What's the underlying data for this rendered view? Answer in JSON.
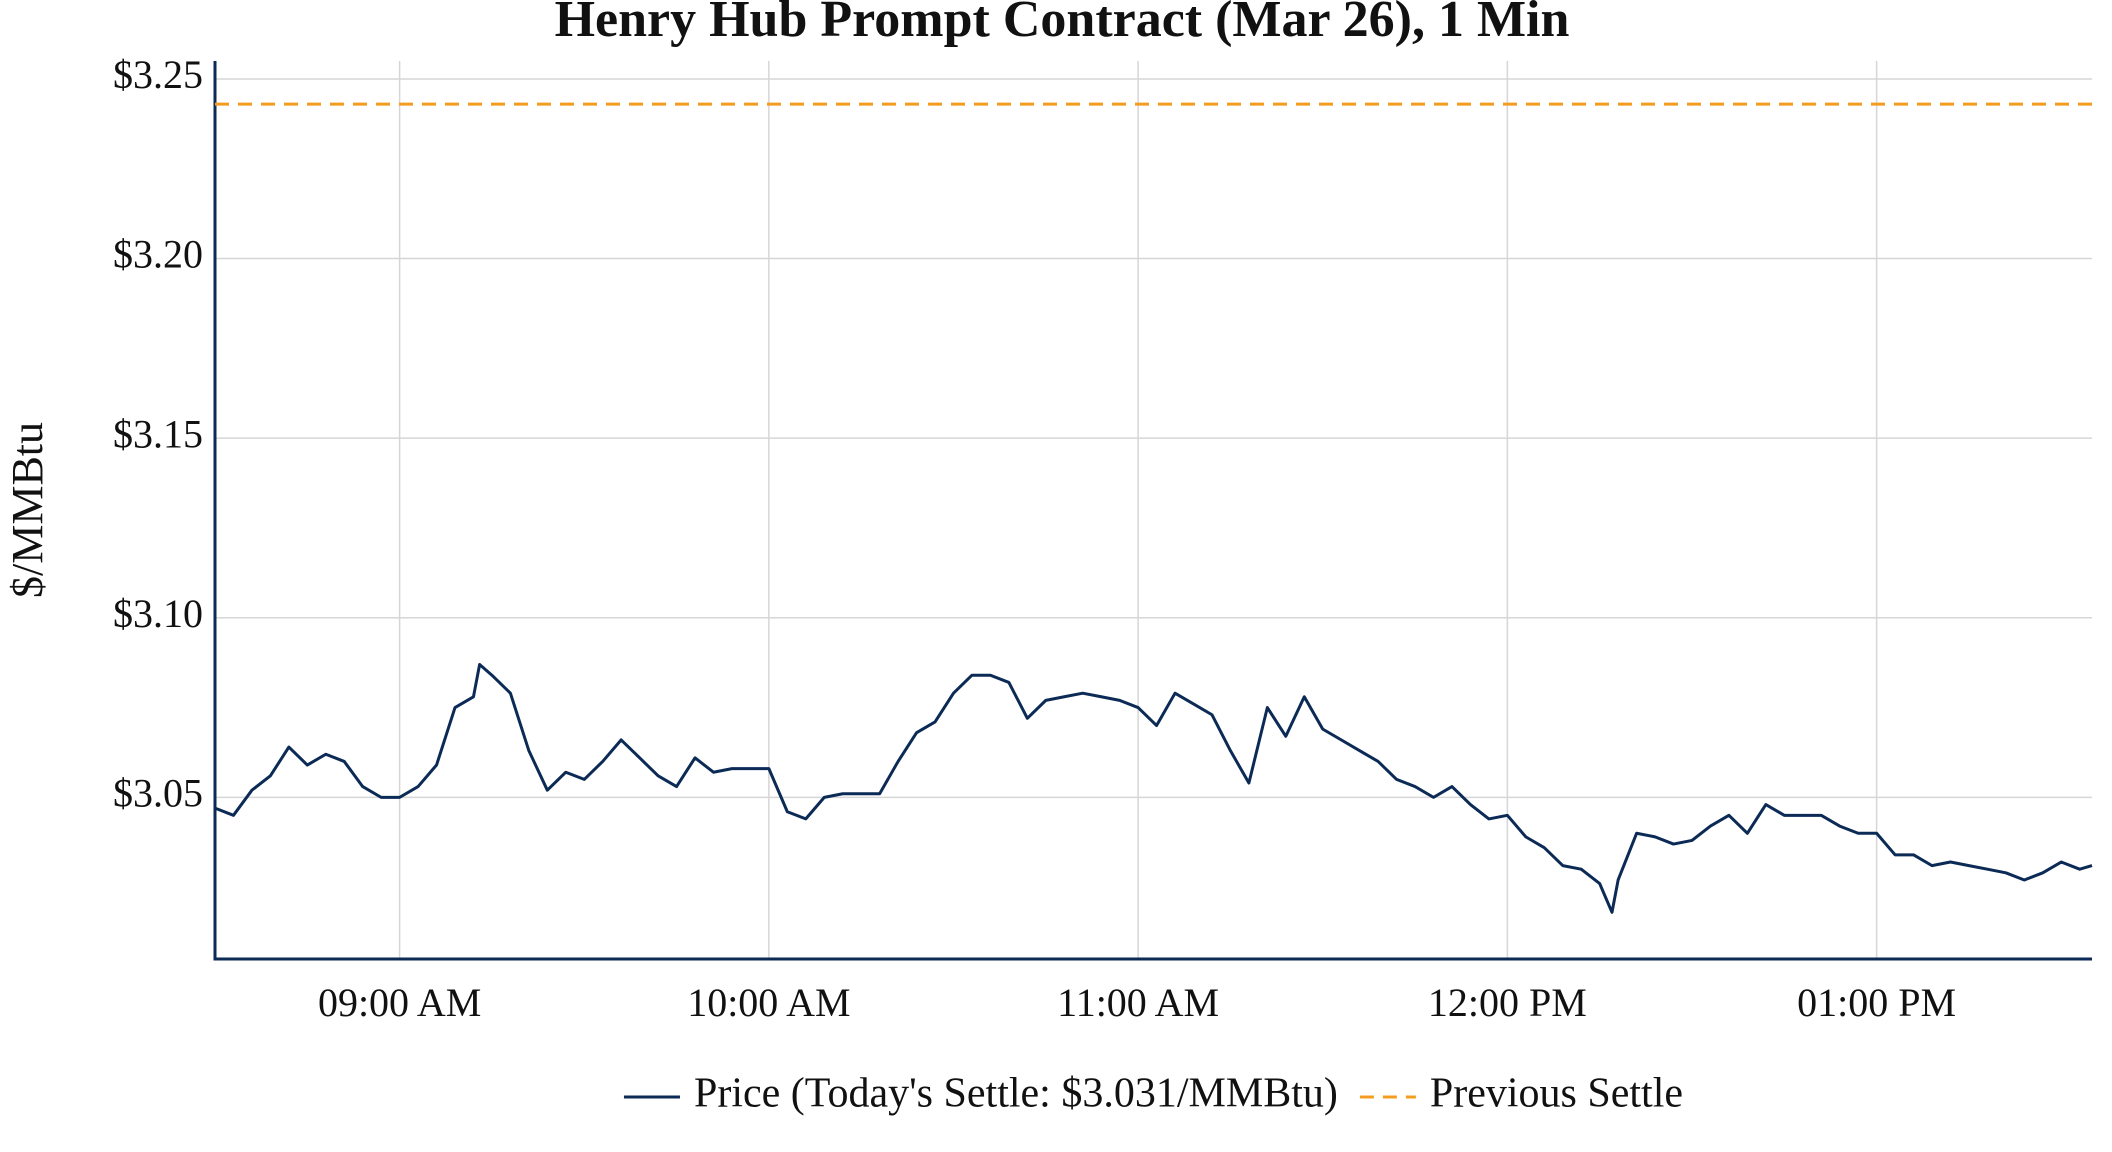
{
  "chart_data": {
    "type": "line",
    "title": "Henry Hub Prompt Contract (Mar 26), 1 Min",
    "y_label": "$/MMBtu",
    "x": [
      "08:30",
      "08:33",
      "08:36",
      "08:39",
      "08:42",
      "08:45",
      "08:48",
      "08:51",
      "08:54",
      "08:57",
      "09:00",
      "09:03",
      "09:06",
      "09:09",
      "09:12",
      "09:13",
      "09:15",
      "09:18",
      "09:21",
      "09:24",
      "09:27",
      "09:30",
      "09:33",
      "09:36",
      "09:39",
      "09:42",
      "09:45",
      "09:48",
      "09:51",
      "09:54",
      "09:57",
      "10:00",
      "10:03",
      "10:06",
      "10:09",
      "10:12",
      "10:15",
      "10:18",
      "10:21",
      "10:24",
      "10:27",
      "10:30",
      "10:33",
      "10:36",
      "10:39",
      "10:42",
      "10:45",
      "10:48",
      "10:51",
      "10:54",
      "10:57",
      "11:00",
      "11:03",
      "11:06",
      "11:09",
      "11:12",
      "11:15",
      "11:18",
      "11:21",
      "11:24",
      "11:27",
      "11:30",
      "11:33",
      "11:36",
      "11:39",
      "11:42",
      "11:45",
      "11:48",
      "11:51",
      "11:54",
      "11:57",
      "12:00",
      "12:03",
      "12:06",
      "12:09",
      "12:12",
      "12:15",
      "12:17",
      "12:18",
      "12:21",
      "12:24",
      "12:27",
      "12:30",
      "12:33",
      "12:36",
      "12:39",
      "12:42",
      "12:45",
      "12:48",
      "12:51",
      "12:54",
      "12:57",
      "13:00",
      "13:03",
      "13:06",
      "13:09",
      "13:12",
      "13:15",
      "13:18",
      "13:21",
      "13:24",
      "13:27",
      "13:30",
      "13:33",
      "13:35"
    ],
    "series": [
      {
        "name": "Price (Today's Settle: $3.031/MMBtu)",
        "color": "#0b2a55",
        "values": [
          3.047,
          3.045,
          3.052,
          3.056,
          3.064,
          3.059,
          3.062,
          3.06,
          3.053,
          3.05,
          3.05,
          3.053,
          3.059,
          3.075,
          3.078,
          3.087,
          3.084,
          3.079,
          3.063,
          3.052,
          3.057,
          3.055,
          3.06,
          3.066,
          3.061,
          3.056,
          3.053,
          3.061,
          3.057,
          3.058,
          3.058,
          3.058,
          3.046,
          3.044,
          3.05,
          3.051,
          3.051,
          3.051,
          3.06,
          3.068,
          3.071,
          3.079,
          3.084,
          3.084,
          3.082,
          3.072,
          3.077,
          3.078,
          3.079,
          3.078,
          3.077,
          3.075,
          3.07,
          3.079,
          3.076,
          3.073,
          3.063,
          3.054,
          3.075,
          3.067,
          3.078,
          3.069,
          3.066,
          3.063,
          3.06,
          3.055,
          3.053,
          3.05,
          3.053,
          3.048,
          3.044,
          3.045,
          3.039,
          3.036,
          3.031,
          3.03,
          3.026,
          3.018,
          3.027,
          3.04,
          3.039,
          3.037,
          3.038,
          3.042,
          3.045,
          3.04,
          3.048,
          3.045,
          3.045,
          3.045,
          3.042,
          3.04,
          3.04,
          3.034,
          3.034,
          3.031,
          3.032,
          3.031,
          3.03,
          3.029,
          3.027,
          3.029,
          3.032,
          3.03,
          3.031
        ]
      }
    ],
    "hlines": [
      {
        "name": "Previous Settle",
        "value": 3.243,
        "color": "#f39c1f",
        "dashed": true
      }
    ],
    "xlim": [
      "08:30",
      "13:35"
    ],
    "xticks": [
      {
        "value": "09:00",
        "label": "09:00 AM"
      },
      {
        "value": "10:00",
        "label": "10:00 AM"
      },
      {
        "value": "11:00",
        "label": "11:00 AM"
      },
      {
        "value": "12:00",
        "label": "12:00 PM"
      },
      {
        "value": "13:00",
        "label": "01:00 PM"
      }
    ],
    "ylim": [
      3.005,
      3.255
    ],
    "yticks": [
      {
        "value": 3.05,
        "label": "$3.05"
      },
      {
        "value": 3.1,
        "label": "$3.10"
      },
      {
        "value": 3.15,
        "label": "$3.15"
      },
      {
        "value": 3.2,
        "label": "$3.20"
      },
      {
        "value": 3.25,
        "label": "$3.25"
      }
    ],
    "grid": true,
    "legend": "bottom"
  }
}
